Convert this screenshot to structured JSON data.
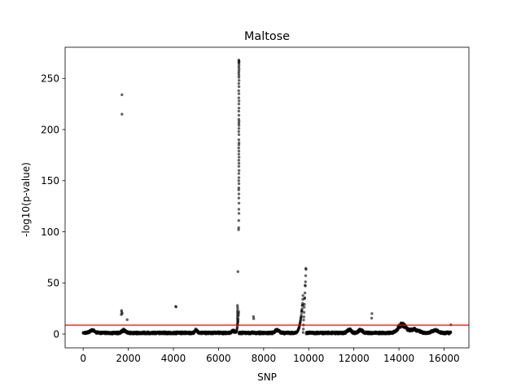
{
  "chart_data": {
    "type": "scatter",
    "title": "Maltose",
    "xlabel": "SNP",
    "ylabel": "-log10(p-value)",
    "xlim": [
      -800,
      17100
    ],
    "ylim": [
      -13.5,
      280.5
    ],
    "xticks": [
      0,
      2000,
      4000,
      6000,
      8000,
      10000,
      12000,
      14000,
      16000
    ],
    "yticks": [
      0,
      50,
      100,
      150,
      200,
      250
    ],
    "grid": false,
    "threshold": {
      "y": 8.7,
      "color": "#ff0000"
    },
    "colors": {
      "points": "#000000",
      "threshold": "#ff0000"
    },
    "n_snps": 16300,
    "highlight_points": [
      {
        "x": 1720,
        "y": 234
      },
      {
        "x": 1720,
        "y": 215
      },
      {
        "x": 1700,
        "y": 23
      },
      {
        "x": 1710,
        "y": 21.5
      },
      {
        "x": 1730,
        "y": 20
      },
      {
        "x": 1690,
        "y": 19
      },
      {
        "x": 1950,
        "y": 14
      },
      {
        "x": 4100,
        "y": 27
      },
      {
        "x": 4120,
        "y": 26.5
      },
      {
        "x": 6860,
        "y": 61
      },
      {
        "x": 6900,
        "y": 268
      },
      {
        "x": 6905,
        "y": 267
      },
      {
        "x": 6910,
        "y": 266
      },
      {
        "x": 6902,
        "y": 265
      },
      {
        "x": 6908,
        "y": 263
      },
      {
        "x": 6900,
        "y": 261
      },
      {
        "x": 6912,
        "y": 259
      },
      {
        "x": 6904,
        "y": 257
      },
      {
        "x": 6898,
        "y": 255
      },
      {
        "x": 6906,
        "y": 253
      },
      {
        "x": 6902,
        "y": 251
      },
      {
        "x": 6910,
        "y": 248
      },
      {
        "x": 6900,
        "y": 245
      },
      {
        "x": 6906,
        "y": 242
      },
      {
        "x": 6896,
        "y": 238
      },
      {
        "x": 6904,
        "y": 235
      },
      {
        "x": 6900,
        "y": 231
      },
      {
        "x": 6908,
        "y": 228
      },
      {
        "x": 6902,
        "y": 225
      },
      {
        "x": 6906,
        "y": 221
      },
      {
        "x": 6898,
        "y": 218
      },
      {
        "x": 6904,
        "y": 214
      },
      {
        "x": 6900,
        "y": 210
      },
      {
        "x": 6910,
        "y": 208
      },
      {
        "x": 6902,
        "y": 206
      },
      {
        "x": 6908,
        "y": 204
      },
      {
        "x": 6904,
        "y": 201
      },
      {
        "x": 6898,
        "y": 198
      },
      {
        "x": 6906,
        "y": 195
      },
      {
        "x": 6900,
        "y": 190
      },
      {
        "x": 6908,
        "y": 187
      },
      {
        "x": 6902,
        "y": 185
      },
      {
        "x": 6896,
        "y": 182
      },
      {
        "x": 6904,
        "y": 179
      },
      {
        "x": 6900,
        "y": 176
      },
      {
        "x": 6910,
        "y": 173
      },
      {
        "x": 6898,
        "y": 170
      },
      {
        "x": 6906,
        "y": 167
      },
      {
        "x": 6902,
        "y": 164
      },
      {
        "x": 6908,
        "y": 160
      },
      {
        "x": 6900,
        "y": 157
      },
      {
        "x": 6904,
        "y": 153
      },
      {
        "x": 6898,
        "y": 150
      },
      {
        "x": 6906,
        "y": 147
      },
      {
        "x": 6900,
        "y": 143
      },
      {
        "x": 6896,
        "y": 141
      },
      {
        "x": 6904,
        "y": 137
      },
      {
        "x": 6900,
        "y": 133
      },
      {
        "x": 6908,
        "y": 128
      },
      {
        "x": 6902,
        "y": 122
      },
      {
        "x": 6906,
        "y": 118
      },
      {
        "x": 6898,
        "y": 111
      },
      {
        "x": 6894,
        "y": 104
      },
      {
        "x": 6890,
        "y": 102
      },
      {
        "x": 6840,
        "y": 28
      },
      {
        "x": 6845,
        "y": 26
      },
      {
        "x": 6850,
        "y": 24
      },
      {
        "x": 6838,
        "y": 22
      },
      {
        "x": 6842,
        "y": 20
      },
      {
        "x": 6848,
        "y": 18
      },
      {
        "x": 6835,
        "y": 16
      },
      {
        "x": 6844,
        "y": 14
      },
      {
        "x": 6852,
        "y": 12
      },
      {
        "x": 6840,
        "y": 10
      },
      {
        "x": 7550,
        "y": 17
      },
      {
        "x": 7560,
        "y": 15
      },
      {
        "x": 12800,
        "y": 20
      },
      {
        "x": 12790,
        "y": 15.5
      },
      {
        "x": 16300,
        "y": 9
      }
    ],
    "background": {
      "baseline_max": 2.2,
      "bumps": [
        {
          "center": 400,
          "height": 3,
          "width": 150
        },
        {
          "center": 1800,
          "height": 3,
          "width": 120
        },
        {
          "center": 5000,
          "height": 3.5,
          "width": 80
        },
        {
          "center": 6650,
          "height": 2.5,
          "width": 100
        },
        {
          "center": 8600,
          "height": 3.5,
          "width": 120
        },
        {
          "center": 11800,
          "height": 4,
          "width": 120
        },
        {
          "center": 12300,
          "height": 4,
          "width": 120
        },
        {
          "center": 14150,
          "height": 10,
          "width": 250
        },
        {
          "center": 14700,
          "height": 4,
          "width": 250
        },
        {
          "center": 15600,
          "height": 3,
          "width": 200
        }
      ],
      "ramps": [
        {
          "start": 6700,
          "end": 6900,
          "peak": 25,
          "power": 3
        },
        {
          "start": 9150,
          "end": 9750,
          "peak": 40,
          "power": 5
        },
        {
          "start": 9750,
          "end": 9880,
          "peak": 69,
          "power": 1
        }
      ]
    }
  }
}
